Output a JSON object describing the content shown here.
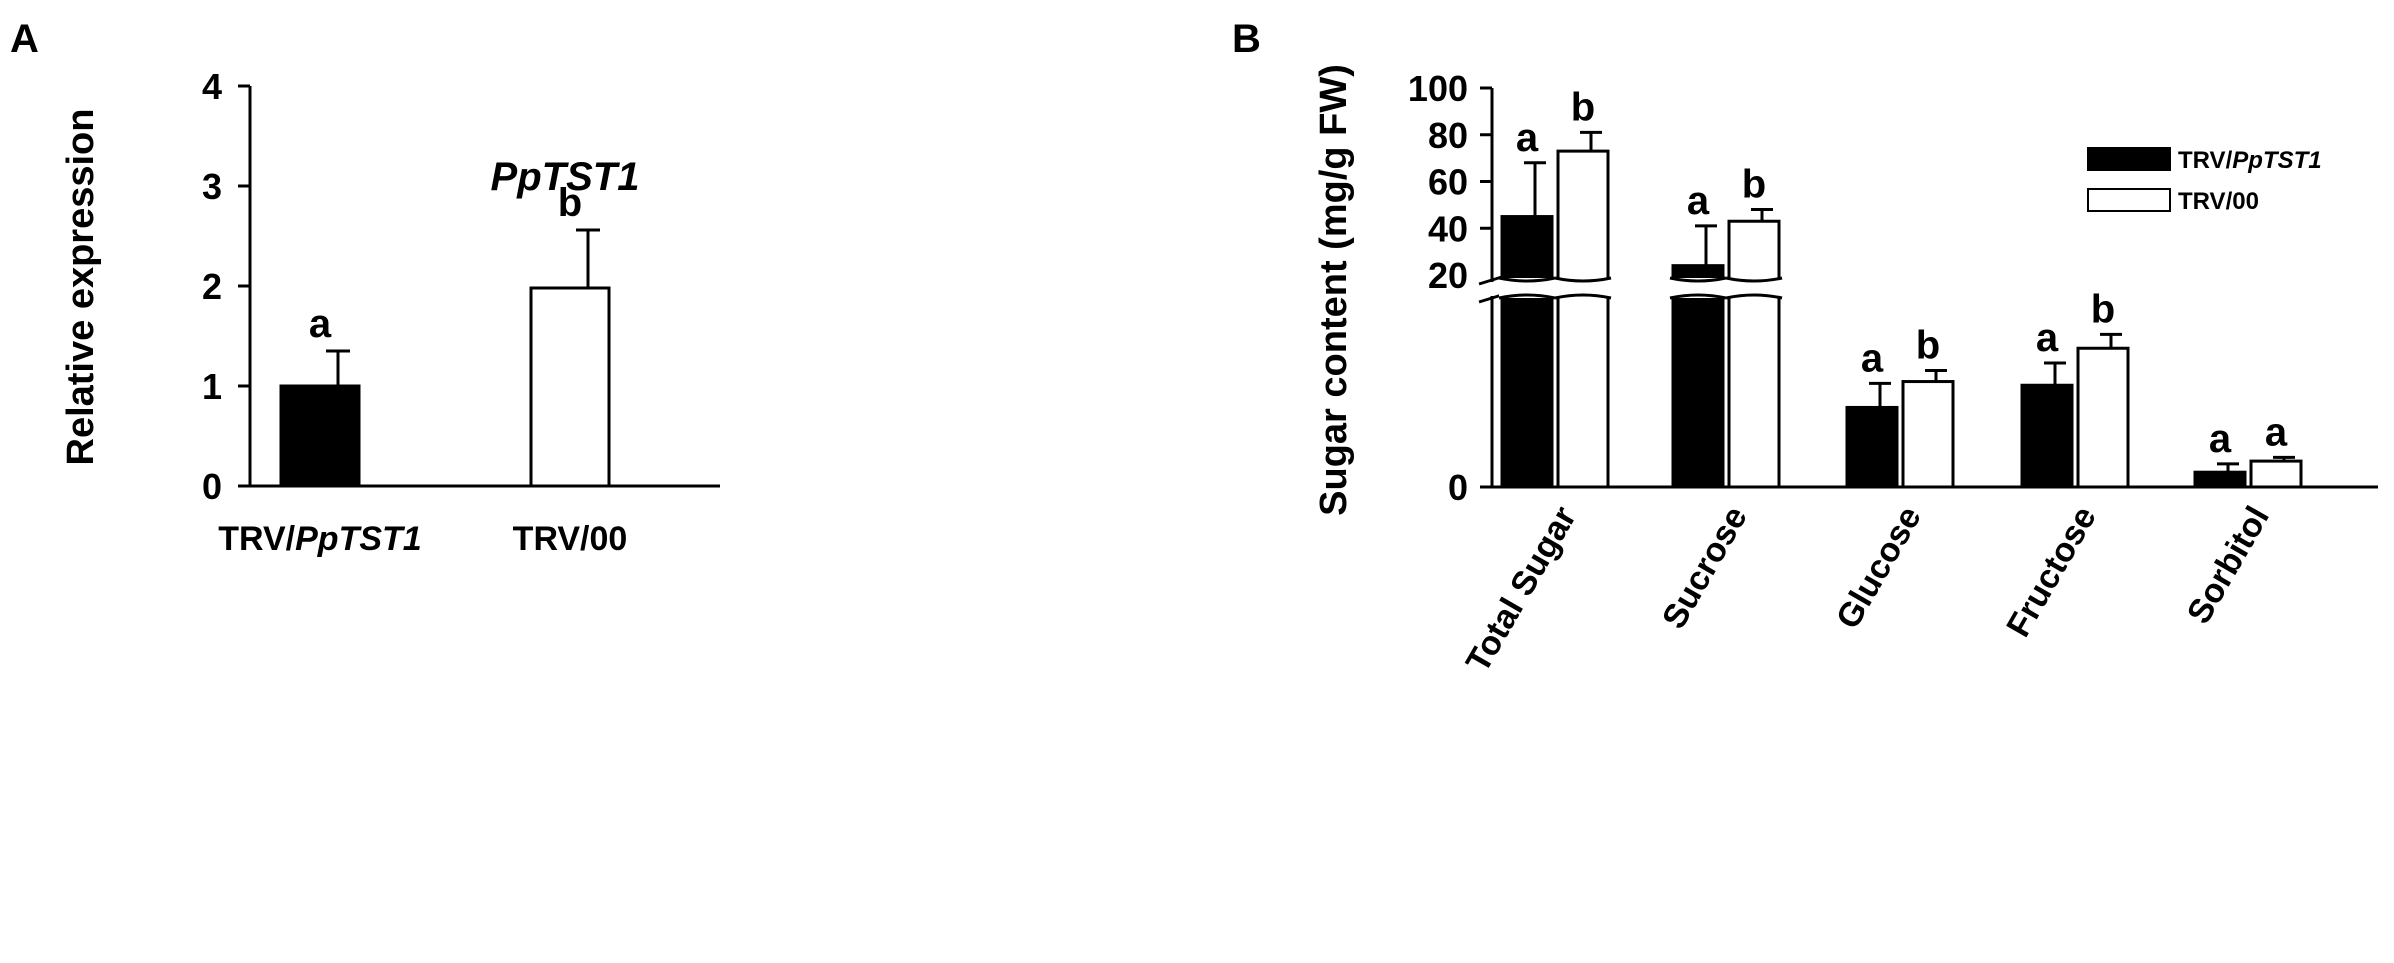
{
  "chart_data": [
    {
      "panel": "A",
      "type": "bar",
      "title": "PpTST1",
      "xlabel": "",
      "ylabel": "Relative expression",
      "ylim": [
        0,
        4
      ],
      "yticks": [
        "0",
        "1",
        "2",
        "3",
        "4"
      ],
      "categories": [
        {
          "prefix": "TRV/",
          "italic": "PpTST1"
        },
        {
          "prefix": "TRV/00",
          "italic": ""
        }
      ],
      "values": [
        1.0,
        1.98
      ],
      "errors": [
        0.35,
        0.58
      ],
      "fills": [
        "#000000",
        "#ffffff"
      ],
      "significance": [
        "a",
        "b"
      ]
    },
    {
      "panel": "B",
      "type": "bar",
      "title": "",
      "xlabel": "",
      "ylabel": "Sugar content (mg/g FW)",
      "axis_break": {
        "lower_range": [
          0,
          20
        ],
        "upper_range": [
          20,
          100
        ]
      },
      "yticks": [
        "0",
        "20",
        "40",
        "60",
        "80",
        "100"
      ],
      "categories": [
        "Total Sugar",
        "Sucrose",
        "Glucose",
        "Fructose",
        "Sorbitol"
      ],
      "series": [
        {
          "name": "TRV/PpTST1",
          "name_prefix": "TRV/",
          "name_italic": "PpTST1",
          "fill": "#000000",
          "values": [
            45,
            24,
            8.6,
            11.0,
            1.6
          ],
          "errors": [
            23,
            17,
            2.6,
            2.4,
            0.9
          ],
          "significance": [
            "a",
            "a",
            "a",
            "a",
            "a"
          ]
        },
        {
          "name": "TRV/00",
          "name_prefix": "TRV/00",
          "name_italic": "",
          "fill": "#ffffff",
          "values": [
            73,
            43,
            11.4,
            15.0,
            2.8
          ],
          "errors": [
            8,
            5,
            1.2,
            1.5,
            0.4
          ],
          "significance": [
            "b",
            "b",
            "b",
            "b",
            "a"
          ]
        }
      ],
      "legend_position": "top-right"
    }
  ]
}
